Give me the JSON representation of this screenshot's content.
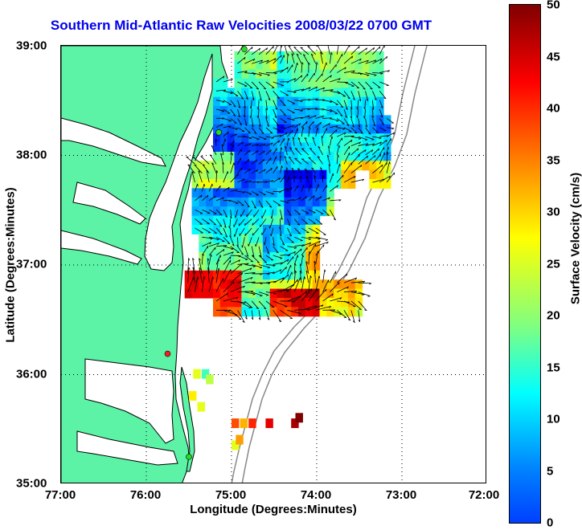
{
  "title": "Southern Mid-Atlantic Raw Velocities 2008/03/22 0700 GMT",
  "axes": {
    "xlabel": "Longitude (Degrees:Minutes)",
    "ylabel": "Latitude (Degrees:Minutes)",
    "xticks": [
      "77:00",
      "76:00",
      "75:00",
      "74:00",
      "73:00",
      "72:00"
    ],
    "yticks": [
      "39:00",
      "38:00",
      "37:00",
      "36:00",
      "35:00"
    ],
    "xrange_lon_west": [
      77,
      72
    ],
    "yrange_lat": [
      35,
      39
    ],
    "grid": "dotted"
  },
  "colorbar": {
    "label": "Surface Velocity (cm/s)",
    "ticks": [
      "50",
      "45",
      "40",
      "35",
      "30",
      "25",
      "20",
      "15",
      "10",
      "5",
      "0"
    ],
    "range": [
      0,
      50
    ],
    "colormap": "jet"
  },
  "colors": {
    "land": "#5cf3a6",
    "title": "#0000ee",
    "station_green": "#22dd22",
    "station_red": "#ee2222"
  },
  "stations": [
    {
      "lon": 74.85,
      "lat": 38.97,
      "color": "green"
    },
    {
      "lon": 75.15,
      "lat": 38.21,
      "color": "green"
    },
    {
      "lon": 75.75,
      "lat": 36.19,
      "color": "red"
    },
    {
      "lon": 75.5,
      "lat": 35.25,
      "color": "green"
    }
  ]
}
